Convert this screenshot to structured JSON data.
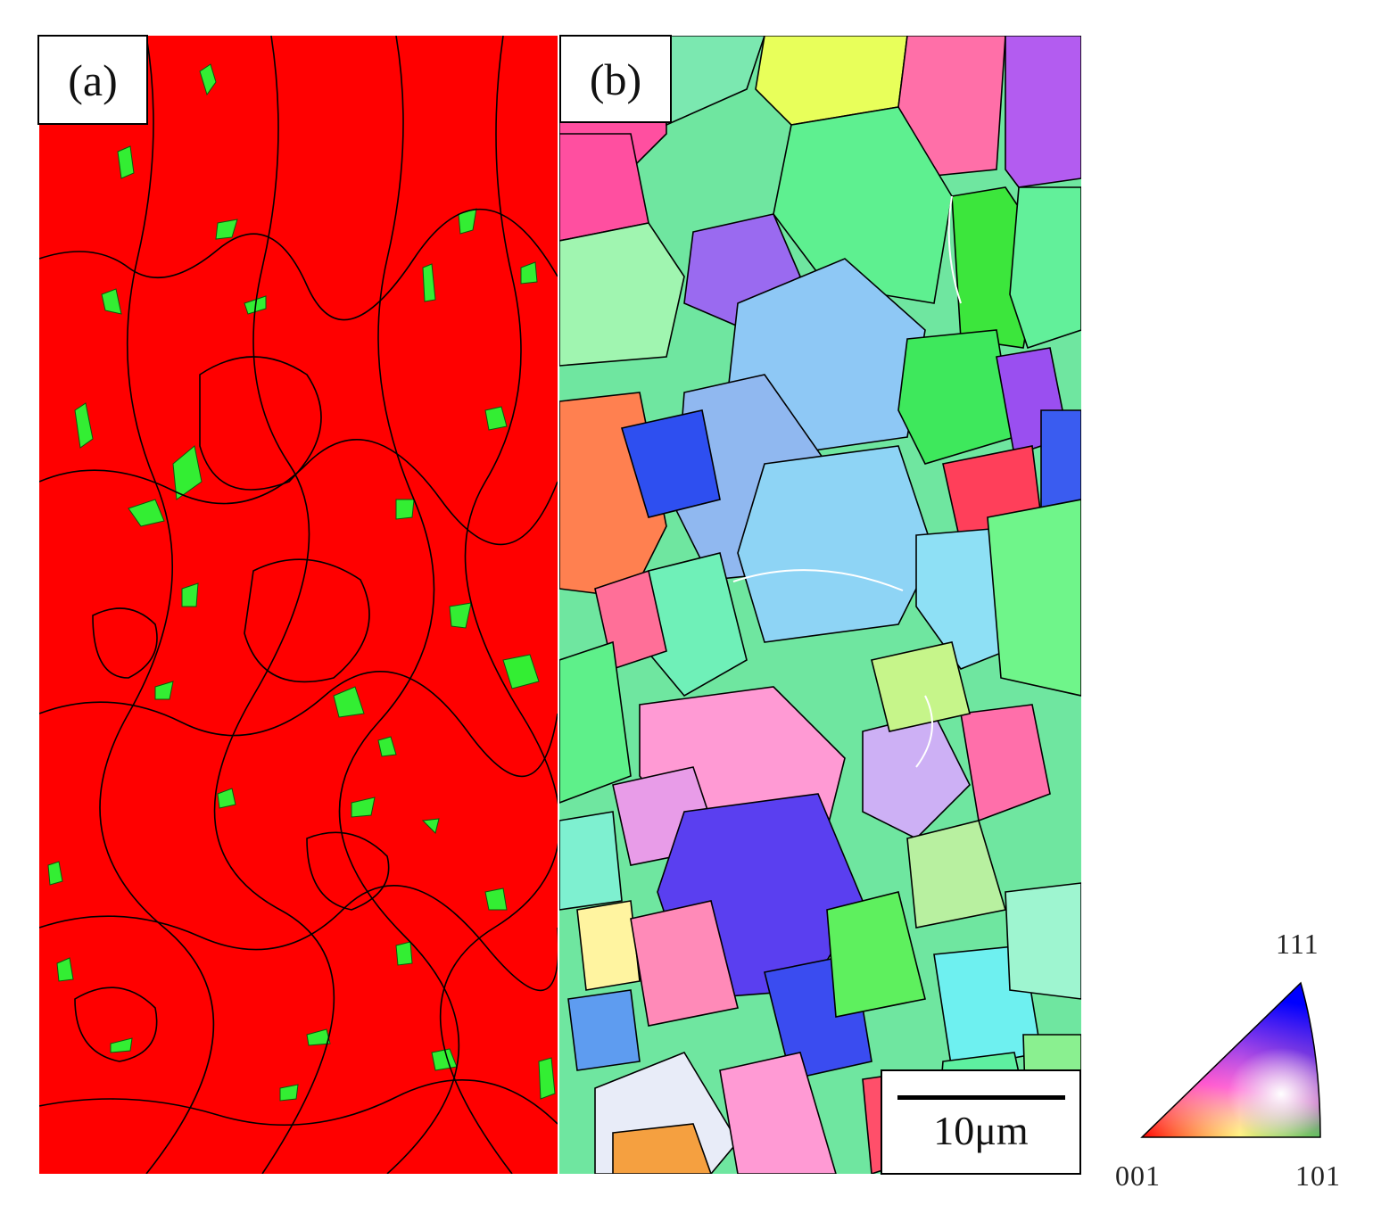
{
  "panels": [
    {
      "label": "(a)"
    },
    {
      "label": "(b)"
    }
  ],
  "scale_bar": {
    "label": "10μm"
  },
  "legend": {
    "type": "inverse pole figure color key",
    "vertices": {
      "top": "111",
      "left": "001",
      "right": "101"
    }
  },
  "colors": {
    "phase_a_matrix": "#ff0000",
    "phase_a_minor": "#33ee33",
    "boundary": "#000000",
    "ipf_001": "#ff0000",
    "ipf_101": "#00cc00",
    "ipf_111": "#0000ff"
  }
}
